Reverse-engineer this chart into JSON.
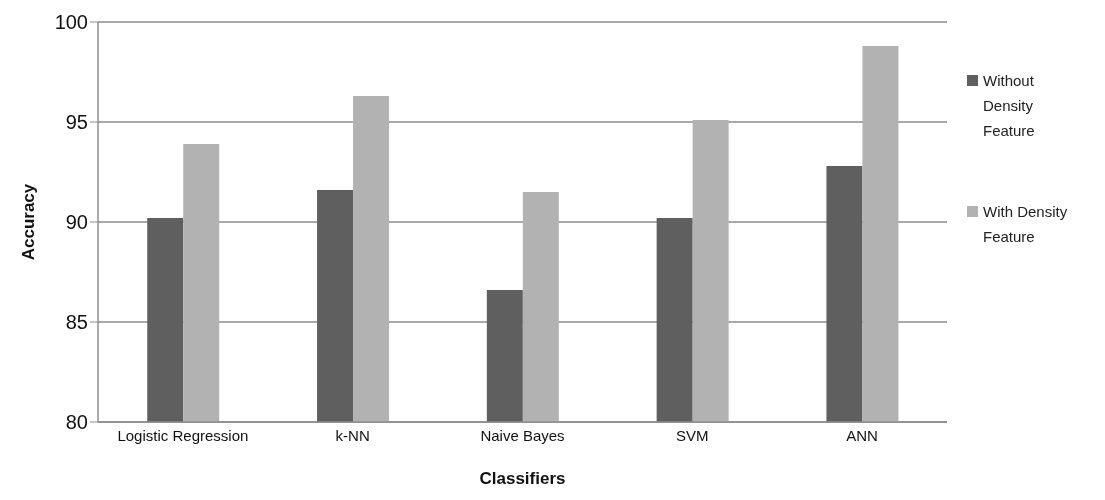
{
  "chart_data": {
    "type": "bar",
    "xlabel": "Classifiers",
    "ylabel": "Accuracy",
    "categories": [
      "Logistic Regression",
      "k-NN",
      "Naive Bayes",
      "SVM",
      "ANN"
    ],
    "series": [
      {
        "name": "Without Density Feature",
        "color": "#5f5f5f",
        "values": [
          90.2,
          91.6,
          86.6,
          90.2,
          92.8
        ]
      },
      {
        "name": "With Density Feature",
        "color": "#b2b2b2",
        "values": [
          93.9,
          96.3,
          91.5,
          95.1,
          98.8
        ]
      }
    ],
    "ylim": [
      80,
      100
    ],
    "yticks": [
      80,
      85,
      90,
      95,
      100
    ],
    "grid": "y",
    "legend": "right"
  }
}
